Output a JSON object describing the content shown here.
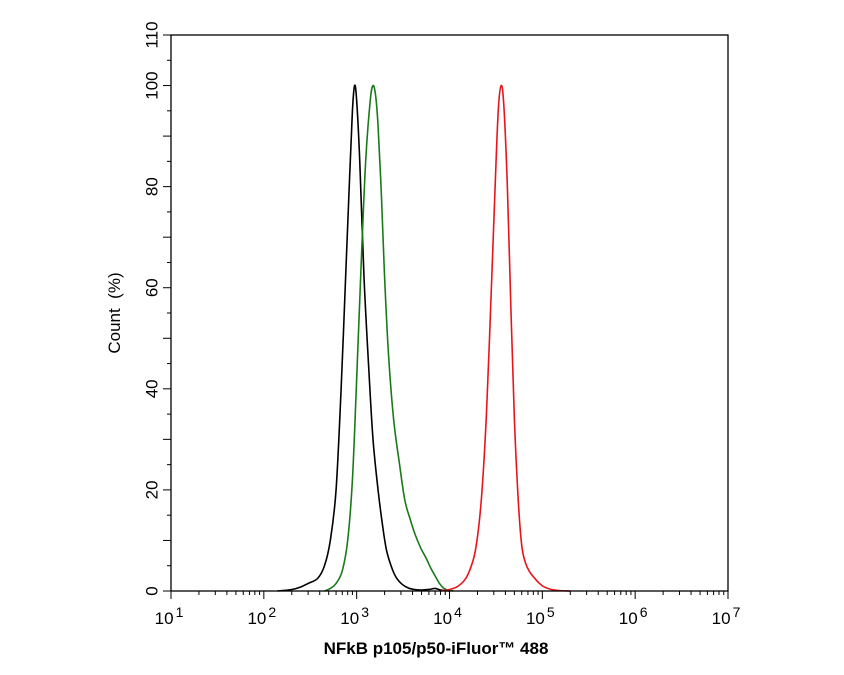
{
  "chart_data": {
    "type": "line",
    "xlabel": "NFkB p105/p50-iFluor™ 488",
    "ylabel": "Count  (%)",
    "x_scale": "log",
    "xlim": [
      10,
      10000000
    ],
    "ylim": [
      0,
      110
    ],
    "x_ticks": [
      {
        "value": 10,
        "base": "10",
        "exp": "1"
      },
      {
        "value": 100,
        "base": "10",
        "exp": "2"
      },
      {
        "value": 1000,
        "base": "10",
        "exp": "3"
      },
      {
        "value": 10000,
        "base": "10",
        "exp": "4"
      },
      {
        "value": 100000,
        "base": "10",
        "exp": "5"
      },
      {
        "value": 1000000,
        "base": "10",
        "exp": "6"
      },
      {
        "value": 10000000,
        "base": "10",
        "exp": "7"
      }
    ],
    "y_ticks": [
      0,
      20,
      40,
      60,
      80,
      100,
      110
    ],
    "grid": false,
    "legend": "none",
    "series": [
      {
        "color": "#000000",
        "x": [
          140,
          200,
          250,
          300,
          380,
          450,
          520,
          600,
          680,
          760,
          840,
          900,
          950,
          1000,
          1080,
          1200,
          1350,
          1500,
          1700,
          1900,
          2100,
          2400,
          2700,
          3100,
          3600,
          4200,
          5000,
          6000,
          7000,
          8000,
          10000
        ],
        "y": [
          0,
          0.3,
          0.8,
          1.5,
          2.5,
          5,
          10,
          20,
          40,
          62,
          82,
          95,
          100,
          97,
          85,
          62,
          44,
          30,
          20,
          13,
          8,
          4.5,
          2.5,
          1.3,
          0.6,
          0.3,
          0.2,
          0.3,
          0.5,
          0.2,
          0
        ]
      },
      {
        "color": "#1a7a1a",
        "x": [
          450,
          520,
          600,
          700,
          800,
          900,
          1000,
          1120,
          1250,
          1400,
          1500,
          1600,
          1700,
          1850,
          2000,
          2200,
          2500,
          2900,
          3300,
          3800,
          4300,
          4900,
          5600,
          6300,
          7000,
          7800,
          8600,
          9500,
          11000
        ],
        "y": [
          0,
          0.5,
          1.5,
          4,
          10,
          22,
          42,
          65,
          85,
          97,
          100,
          98,
          92,
          78,
          62,
          47,
          34,
          25,
          18,
          14,
          11,
          8.5,
          6.5,
          4.5,
          3,
          1.5,
          0.6,
          0.2,
          0
        ]
      },
      {
        "color": "#e8141c",
        "x": [
          8000,
          10000,
          12000,
          14000,
          16000,
          19000,
          22000,
          25000,
          28000,
          31000,
          33500,
          36000,
          38500,
          42000,
          46000,
          50000,
          55000,
          60000,
          66000,
          73000,
          82000,
          92000,
          105000,
          125000,
          150000,
          200000
        ],
        "y": [
          0,
          0.3,
          0.8,
          1.8,
          3.5,
          8,
          18,
          35,
          58,
          80,
          95,
          100,
          96,
          80,
          55,
          34,
          18,
          9,
          5.5,
          3.8,
          2.6,
          1.6,
          0.8,
          0.3,
          0.1,
          0
        ]
      }
    ]
  }
}
